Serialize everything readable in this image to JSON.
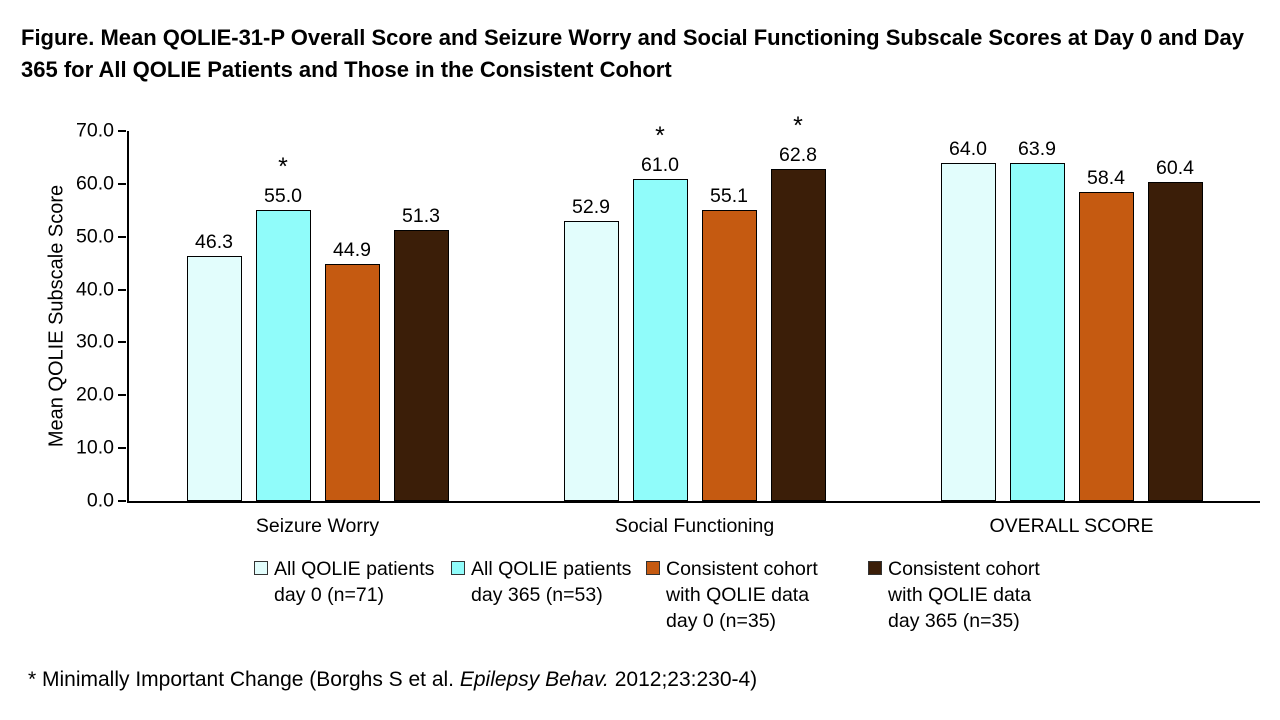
{
  "footnote": {
    "prefix": "* Minimally Important Change (Borghs S et al. ",
    "italic": "Epilepsy Behav.",
    "suffix": " 2012;23:230-4)"
  },
  "chart_data": {
    "type": "bar",
    "title": "Figure. Mean QOLIE-31-P Overall Score and Seizure Worry and Social Functioning Subscale Scores at Day 0 and Day 365 for All QOLIE Patients and Those in the Consistent Cohort",
    "ylabel": "Mean QOLIE Subscale Score",
    "xlabel": "",
    "ylim": [
      0,
      70
    ],
    "ytick_step": 10,
    "ytick_decimals": 1,
    "value_label_decimals": 1,
    "grid": false,
    "legend_position": "bottom",
    "bar_border_color": "#000000",
    "categories": [
      "Seizure Worry",
      "Social Functioning",
      "OVERALL SCORE"
    ],
    "series": [
      {
        "name": "All QOLIE patients day 0 (n=71)",
        "legend_lines": [
          "All QOLIE patients",
          "day 0 (n=71)"
        ],
        "color": "#E2FDFC",
        "values": [
          46.3,
          52.9,
          64.0
        ],
        "starred": [
          false,
          false,
          false
        ]
      },
      {
        "name": "All QOLIE patients day 365 (n=53)",
        "legend_lines": [
          "All QOLIE patients",
          "day 365 (n=53)"
        ],
        "color": "#90FCFA",
        "values": [
          55.0,
          61.0,
          63.9
        ],
        "starred": [
          true,
          true,
          false
        ]
      },
      {
        "name": "Consistent cohort with QOLIE data day 0 (n=35)",
        "legend_lines": [
          "Consistent cohort",
          "with QOLIE data",
          "day 0 (n=35)"
        ],
        "color": "#C55A11",
        "values": [
          44.9,
          55.1,
          58.4
        ],
        "starred": [
          false,
          false,
          false
        ]
      },
      {
        "name": "Consistent cohort with QOLIE data day 365 (n=35)",
        "legend_lines": [
          "Consistent cohort",
          "with QOLIE data",
          "day 365 (n=35)"
        ],
        "color": "#3B1E08",
        "values": [
          51.3,
          62.8,
          60.4
        ],
        "starred": [
          false,
          true,
          false
        ]
      }
    ],
    "annotations": {
      "marker": "*",
      "marker_meaning": "Minimally Important Change"
    }
  }
}
